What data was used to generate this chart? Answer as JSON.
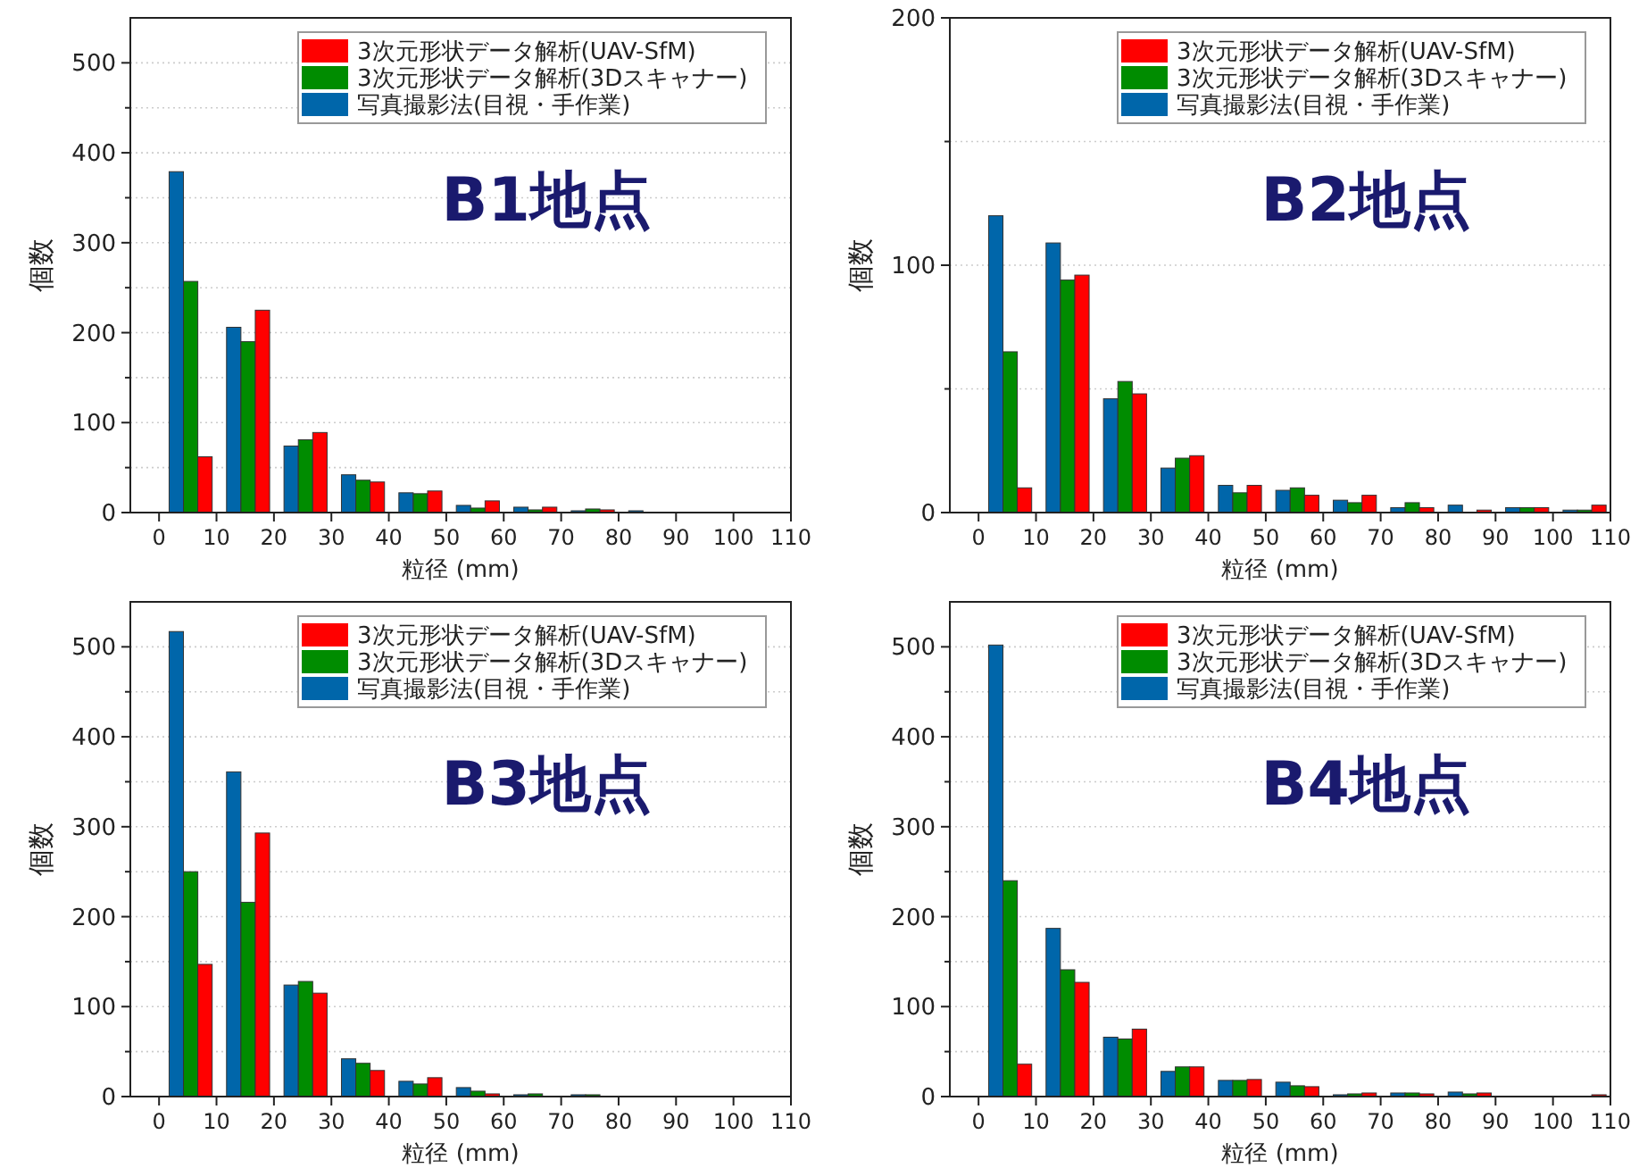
{
  "chart_data": [
    {
      "type": "bar",
      "xlabel": "粒径 (mm)",
      "ylabel": "個数",
      "annotations": [
        "B1地点"
      ],
      "legend": "top right",
      "grid": "y",
      "xlim": [
        -5,
        110
      ],
      "xticks": [
        0,
        10,
        20,
        30,
        40,
        50,
        60,
        70,
        80,
        90,
        100,
        110
      ],
      "ylim": [
        0,
        550
      ],
      "yticks": [
        0,
        {
          "value": 50,
          "label": null
        },
        100,
        {
          "value": 150,
          "label": null
        },
        200,
        {
          "value": 250,
          "label": null
        },
        300,
        {
          "value": 350,
          "label": null
        },
        400,
        {
          "value": 450,
          "label": null
        },
        500
      ],
      "series": [
        {
          "name": "3次元形状データ解析(UAV-SfM)",
          "color": "#ff0000",
          "x": [
            8,
            18,
            28,
            38,
            48,
            58,
            68,
            78,
            88,
            98,
            108
          ],
          "values": [
            62,
            225,
            89,
            34,
            24,
            13,
            6,
            3,
            0,
            0,
            0
          ]
        },
        {
          "name": "3次元形状データ解析(3Dスキャナー)",
          "color": "#008c00",
          "x": [
            5.5,
            15.5,
            25.5,
            35.5,
            45.5,
            55.5,
            65.5,
            75.5,
            85.5,
            95.5,
            105.5
          ],
          "values": [
            257,
            190,
            81,
            36,
            21,
            5,
            3,
            4,
            0,
            0,
            0
          ]
        },
        {
          "name": "写真撮影法(目視・手作業)",
          "color": "#0066aa",
          "x": [
            3,
            13,
            23,
            33,
            43,
            53,
            63,
            73,
            83,
            93,
            103
          ],
          "values": [
            379,
            206,
            74,
            42,
            22,
            8,
            6,
            2,
            2,
            0,
            0
          ]
        }
      ]
    },
    {
      "type": "bar",
      "xlabel": "粒径 (mm)",
      "ylabel": "個数",
      "annotations": [
        "B2地点"
      ],
      "legend": "top right",
      "grid": "y",
      "xlim": [
        -5,
        110
      ],
      "xticks": [
        0,
        10,
        20,
        30,
        40,
        50,
        60,
        70,
        80,
        90,
        100,
        110
      ],
      "ylim": [
        0,
        200
      ],
      "yticks": [
        0,
        {
          "value": 50,
          "label": null
        },
        100,
        {
          "value": 150,
          "label": null
        },
        200
      ],
      "series": [
        {
          "name": "3次元形状データ解析(UAV-SfM)",
          "color": "#ff0000",
          "x": [
            8,
            18,
            28,
            38,
            48,
            58,
            68,
            78,
            88,
            98,
            108
          ],
          "values": [
            10,
            96,
            48,
            23,
            11,
            7,
            7,
            2,
            1,
            2,
            3
          ]
        },
        {
          "name": "3次元形状データ解析(3Dスキャナー)",
          "color": "#008c00",
          "x": [
            5.5,
            15.5,
            25.5,
            35.5,
            45.5,
            55.5,
            65.5,
            75.5,
            85.5,
            95.5,
            105.5
          ],
          "values": [
            65,
            94,
            53,
            22,
            8,
            10,
            4,
            4,
            0,
            2,
            1
          ]
        },
        {
          "name": "写真撮影法(目視・手作業)",
          "color": "#0066aa",
          "x": [
            3,
            13,
            23,
            33,
            43,
            53,
            63,
            73,
            83,
            93,
            103
          ],
          "values": [
            120,
            109,
            46,
            18,
            11,
            9,
            5,
            2,
            3,
            2,
            1
          ]
        }
      ]
    },
    {
      "type": "bar",
      "xlabel": "粒径 (mm)",
      "ylabel": "個数",
      "annotations": [
        "B3地点"
      ],
      "legend": "top right",
      "grid": "y",
      "xlim": [
        -5,
        110
      ],
      "xticks": [
        0,
        10,
        20,
        30,
        40,
        50,
        60,
        70,
        80,
        90,
        100,
        110
      ],
      "ylim": [
        0,
        550
      ],
      "yticks": [
        0,
        {
          "value": 50,
          "label": null
        },
        100,
        {
          "value": 150,
          "label": null
        },
        200,
        {
          "value": 250,
          "label": null
        },
        300,
        {
          "value": 350,
          "label": null
        },
        400,
        {
          "value": 450,
          "label": null
        },
        500
      ],
      "series": [
        {
          "name": "3次元形状データ解析(UAV-SfM)",
          "color": "#ff0000",
          "x": [
            8,
            18,
            28,
            38,
            48,
            58,
            68,
            78,
            88,
            98,
            108
          ],
          "values": [
            147,
            293,
            115,
            29,
            21,
            3,
            0,
            0,
            0,
            0,
            0
          ]
        },
        {
          "name": "3次元形状データ解析(3Dスキャナー)",
          "color": "#008c00",
          "x": [
            5.5,
            15.5,
            25.5,
            35.5,
            45.5,
            55.5,
            65.5,
            75.5,
            85.5,
            95.5,
            105.5
          ],
          "values": [
            250,
            216,
            128,
            37,
            14,
            6,
            3,
            2,
            0,
            0,
            0
          ]
        },
        {
          "name": "写真撮影法(目視・手作業)",
          "color": "#0066aa",
          "x": [
            3,
            13,
            23,
            33,
            43,
            53,
            63,
            73,
            83,
            93,
            103
          ],
          "values": [
            517,
            361,
            124,
            42,
            17,
            10,
            2,
            2,
            0,
            0,
            0
          ]
        }
      ]
    },
    {
      "type": "bar",
      "xlabel": "粒径 (mm)",
      "ylabel": "個数",
      "annotations": [
        "B4地点"
      ],
      "legend": "top right",
      "grid": "y",
      "xlim": [
        -5,
        110
      ],
      "xticks": [
        0,
        10,
        20,
        30,
        40,
        50,
        60,
        70,
        80,
        90,
        100,
        110
      ],
      "ylim": [
        0,
        550
      ],
      "yticks": [
        0,
        {
          "value": 50,
          "label": null
        },
        100,
        {
          "value": 150,
          "label": null
        },
        200,
        {
          "value": 250,
          "label": null
        },
        300,
        {
          "value": 350,
          "label": null
        },
        400,
        {
          "value": 450,
          "label": null
        },
        500
      ],
      "series": [
        {
          "name": "3次元形状データ解析(UAV-SfM)",
          "color": "#ff0000",
          "x": [
            8,
            18,
            28,
            38,
            48,
            58,
            68,
            78,
            88,
            98,
            108
          ],
          "values": [
            36,
            127,
            75,
            33,
            19,
            11,
            4,
            3,
            4,
            0,
            2
          ]
        },
        {
          "name": "3次元形状データ解析(3Dスキャナー)",
          "color": "#008c00",
          "x": [
            5.5,
            15.5,
            25.5,
            35.5,
            45.5,
            55.5,
            65.5,
            75.5,
            85.5,
            95.5,
            105.5
          ],
          "values": [
            240,
            141,
            64,
            33,
            18,
            12,
            3,
            4,
            3,
            0,
            0
          ]
        },
        {
          "name": "写真撮影法(目視・手作業)",
          "color": "#0066aa",
          "x": [
            3,
            13,
            23,
            33,
            43,
            53,
            63,
            73,
            83,
            93,
            103
          ],
          "values": [
            502,
            187,
            66,
            28,
            18,
            16,
            2,
            4,
            5,
            0,
            0
          ]
        }
      ]
    }
  ]
}
